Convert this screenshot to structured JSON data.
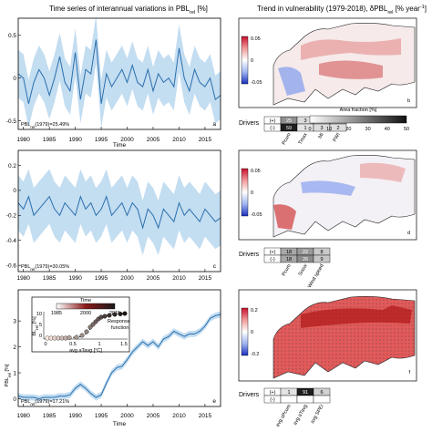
{
  "left_title_prefix": "Time series of interannual variations in PBL",
  "left_title_sub": "rel",
  "left_title_suffix": " [%]",
  "right_title_prefix": "Trend in vulnerability (1979-2018), δPBL",
  "right_title_sub": "rel",
  "right_title_suffix": " [% year",
  "right_title_sup": "-1",
  "right_title_end": "]",
  "time_label": "Time",
  "drivers_label": "Drivers",
  "area_fraction_label": "Area fraction [%]",
  "area_fraction_ticks": [
    "0",
    "10",
    "20",
    "30",
    "40",
    "50"
  ],
  "inset": {
    "time_label": "Time",
    "time_ticks": [
      "1985",
      "2000",
      "2015"
    ],
    "ylabel": "BL",
    "ylabel_sub": "rel",
    "ylabel_suffix": " [%]",
    "yticks": [
      "10",
      "5",
      "0"
    ],
    "xticks": [
      "0",
      "0.5",
      "1",
      "1.5"
    ],
    "xlabel": "avg aTavg [°C]",
    "response_label": "Response\nfunction"
  },
  "chart_data": [
    {
      "type": "line",
      "panel": "a",
      "annotation": "PBL_rel(1979)=25.49%",
      "annotation_main": "PBL",
      "annotation_sub": "rel",
      "annotation_rest": "(1979)=25.49%",
      "xlabel": "Time",
      "ylabel": "",
      "ylim": [
        -0.6,
        0.7
      ],
      "xlim": [
        1979,
        2018
      ],
      "xticks": [
        1980,
        1985,
        1990,
        1995,
        2000,
        2005,
        2010,
        2015
      ],
      "ytick_labels": [
        "0.5",
        "0",
        "-0.5"
      ],
      "yticks": [
        0.5,
        0,
        -0.5
      ],
      "x": [
        1979,
        1980,
        1981,
        1982,
        1983,
        1984,
        1985,
        1986,
        1987,
        1988,
        1989,
        1990,
        1991,
        1992,
        1993,
        1994,
        1995,
        1996,
        1997,
        1998,
        1999,
        2000,
        2001,
        2002,
        2003,
        2004,
        2005,
        2006,
        2007,
        2008,
        2009,
        2010,
        2011,
        2012,
        2013,
        2014,
        2015,
        2016,
        2017,
        2018
      ],
      "values": [
        0.05,
        0.0,
        -0.3,
        -0.05,
        0.1,
        0.0,
        -0.2,
        0.0,
        0.25,
        -0.05,
        -0.15,
        0.3,
        -0.25,
        0.1,
        0.05,
        0.45,
        -0.3,
        0.05,
        -0.1,
        0.0,
        0.1,
        -0.05,
        0.15,
        -0.05,
        -0.1,
        0.1,
        -0.15,
        0.05,
        -0.05,
        0.0,
        -0.1,
        0.35,
        0.0,
        -0.15,
        0.1,
        -0.05,
        -0.1,
        0.0,
        -0.25,
        -0.2
      ],
      "band_half_width": 0.28
    },
    {
      "type": "line",
      "panel": "c",
      "annotation_main": "PBL",
      "annotation_sub": "rel",
      "annotation_rest": "(1979)=30.05%",
      "xlabel": "",
      "ylim": [
        -0.65,
        0.32
      ],
      "xlim": [
        1979,
        2018
      ],
      "xticks": [
        1980,
        1985,
        1990,
        1995,
        2000,
        2005,
        2010,
        2015
      ],
      "yticks": [
        0.2,
        0,
        -0.2,
        -0.4,
        -0.6
      ],
      "ytick_labels": [
        "0.2",
        "0",
        "-0.2",
        "-0.4",
        "-0.6"
      ],
      "x": [
        1979,
        1980,
        1981,
        1982,
        1983,
        1984,
        1985,
        1986,
        1987,
        1988,
        1989,
        1990,
        1991,
        1992,
        1993,
        1994,
        1995,
        1996,
        1997,
        1998,
        1999,
        2000,
        2001,
        2002,
        2003,
        2004,
        2005,
        2006,
        2007,
        2008,
        2009,
        2010,
        2011,
        2012,
        2013,
        2014,
        2015,
        2016,
        2017,
        2018
      ],
      "values": [
        -0.1,
        -0.15,
        -0.05,
        -0.2,
        -0.15,
        -0.1,
        -0.05,
        -0.15,
        -0.2,
        -0.1,
        -0.15,
        -0.2,
        -0.05,
        -0.15,
        -0.1,
        -0.2,
        -0.15,
        -0.05,
        -0.2,
        -0.15,
        -0.1,
        -0.2,
        -0.1,
        -0.15,
        -0.3,
        -0.15,
        -0.2,
        -0.3,
        -0.15,
        -0.2,
        -0.25,
        -0.1,
        -0.2,
        -0.15,
        -0.2,
        -0.25,
        -0.15,
        -0.2,
        -0.25,
        -0.22
      ],
      "band_half_width": 0.22
    },
    {
      "type": "line",
      "panel": "e",
      "annotation_main": "PBL",
      "annotation_sub": "rel",
      "annotation_rest": "(1979)=17.21%",
      "xlabel": "Time",
      "ylabel_main": "PBL",
      "ylabel_sub": "rel",
      "ylabel_suffix": " [%]",
      "ylim": [
        -0.3,
        4.2
      ],
      "xlim": [
        1979,
        2018
      ],
      "xticks": [
        1980,
        1985,
        1990,
        1995,
        2000,
        2005,
        2010,
        2015
      ],
      "yticks": [
        3,
        2,
        1,
        0
      ],
      "ytick_labels": [
        "3",
        "2",
        "1",
        "0"
      ],
      "x": [
        1979,
        1980,
        1981,
        1982,
        1983,
        1984,
        1985,
        1986,
        1987,
        1988,
        1989,
        1990,
        1991,
        1992,
        1993,
        1994,
        1995,
        1996,
        1997,
        1998,
        1999,
        2000,
        2001,
        2002,
        2003,
        2004,
        2005,
        2006,
        2007,
        2008,
        2009,
        2010,
        2011,
        2012,
        2013,
        2014,
        2015,
        2016,
        2017,
        2018
      ],
      "values": [
        0.1,
        0.05,
        0.05,
        0.05,
        0.0,
        0.05,
        0.05,
        0.05,
        0.1,
        0.1,
        0.15,
        0.4,
        0.55,
        0.4,
        0.2,
        0.05,
        0.15,
        0.6,
        1.0,
        1.2,
        1.25,
        1.5,
        1.8,
        2.0,
        2.2,
        2.05,
        2.2,
        2.0,
        2.3,
        2.4,
        2.6,
        2.5,
        2.4,
        2.5,
        2.5,
        2.6,
        2.8,
        3.1,
        3.2,
        3.25
      ],
      "band_half_width": 0.12
    }
  ],
  "maps": [
    {
      "colorbar_ticks": [
        "0.05",
        "0",
        "-0.05"
      ],
      "driver_labels": [
        "Pcum",
        "Tmax",
        "MI",
        "FWI"
      ],
      "table_rows": [
        [
          "(+)",
          "25",
          "3",
          "1",
          "2"
        ],
        [
          "(-)",
          "59",
          "1",
          "3",
          "2"
        ]
      ],
      "marker": "b"
    },
    {
      "colorbar_ticks": [
        "0.05",
        "0",
        "-0.05"
      ],
      "driver_labels": [
        "Pcum",
        "Snow",
        "Wind speed"
      ],
      "table_rows": [
        [
          "(+)",
          "18",
          "22",
          "8"
        ],
        [
          "(-)",
          "18",
          "26",
          "9"
        ]
      ],
      "marker": "d"
    },
    {
      "colorbar_ticks": [
        "0.2",
        "0",
        "-0.2"
      ],
      "driver_labels": [
        "avg sPcum",
        "avg aTavg",
        "avg SPEI"
      ],
      "table_rows": [
        [
          "(+)",
          "1",
          "91",
          "6"
        ],
        [
          "(-)",
          "",
          "",
          ""
        ]
      ],
      "marker": "f"
    }
  ]
}
